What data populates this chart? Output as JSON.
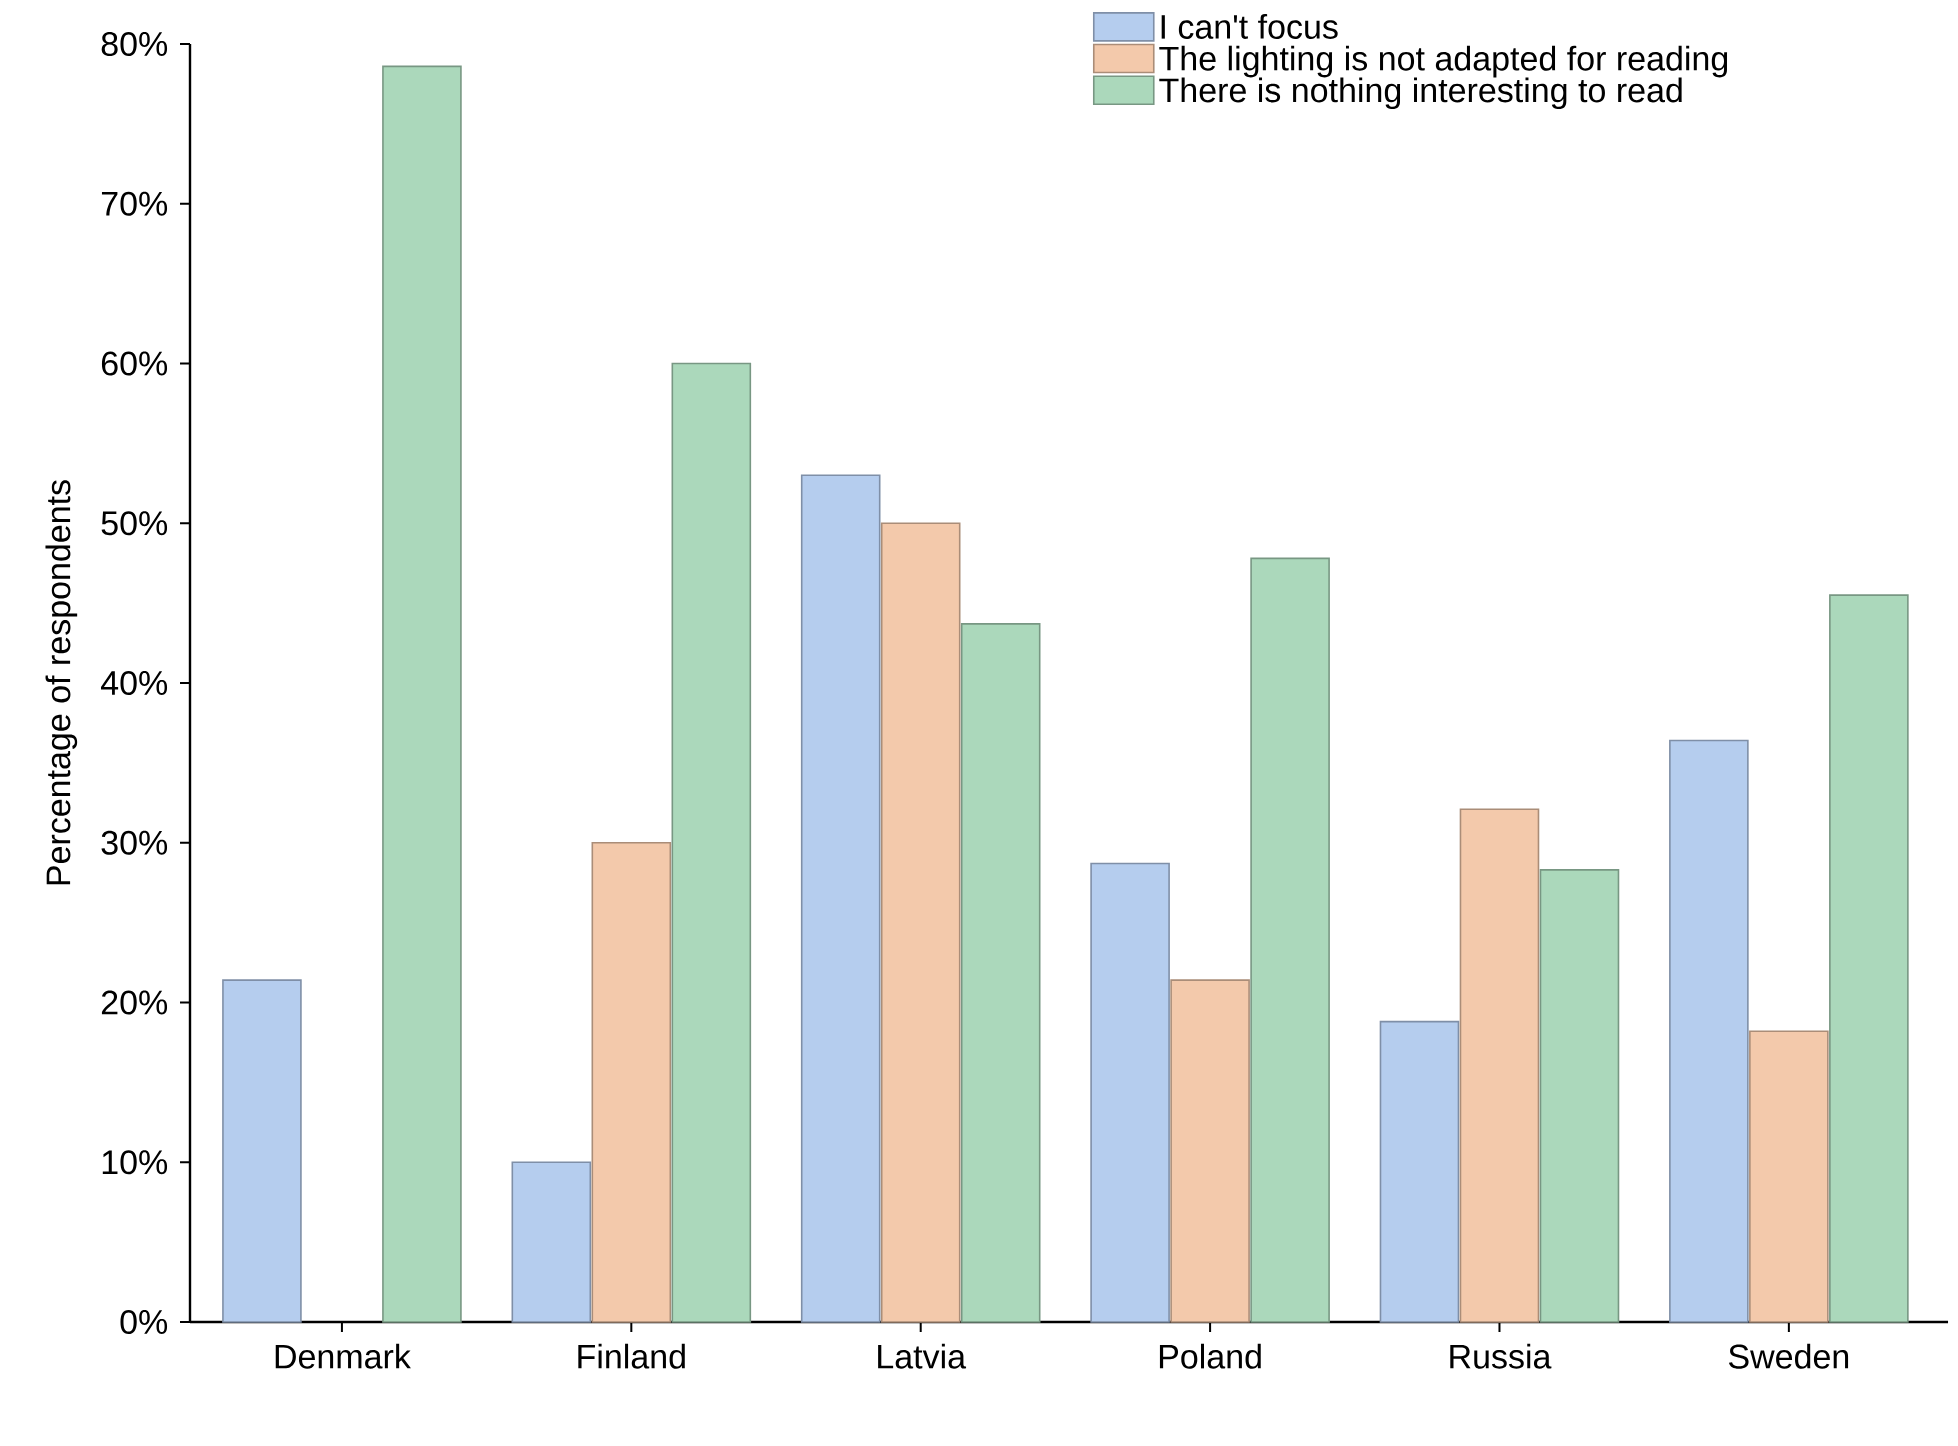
{
  "chart_data": {
    "type": "bar",
    "ylabel": "Percentage of respondents",
    "categories": [
      "Denmark",
      "Finland",
      "Latvia",
      "Poland",
      "Russia",
      "Sweden"
    ],
    "ylim": [
      0,
      80
    ],
    "yticks": [
      {
        "value": 0,
        "label": "0%"
      },
      {
        "value": 10,
        "label": "10%"
      },
      {
        "value": 20,
        "label": "20%"
      },
      {
        "value": 30,
        "label": "30%"
      },
      {
        "value": 40,
        "label": "40%"
      },
      {
        "value": 50,
        "label": "50%"
      },
      {
        "value": 60,
        "label": "60%"
      },
      {
        "value": 70,
        "label": "70%"
      },
      {
        "value": 80,
        "label": "80%"
      }
    ],
    "legend": "top right",
    "series": [
      {
        "name": "I can't focus",
        "color": "#b5cdee",
        "values": [
          21.4,
          10.0,
          53.0,
          28.7,
          18.8,
          36.4
        ]
      },
      {
        "name": "The lighting is not adapted for reading",
        "color": "#f3c9ab",
        "values": [
          null,
          30.0,
          50.0,
          21.4,
          32.1,
          18.2
        ]
      },
      {
        "name": "There is nothing interesting to read",
        "color": "#abd8bb",
        "values": [
          78.6,
          60.0,
          43.7,
          47.8,
          28.3,
          45.5
        ]
      }
    ]
  }
}
